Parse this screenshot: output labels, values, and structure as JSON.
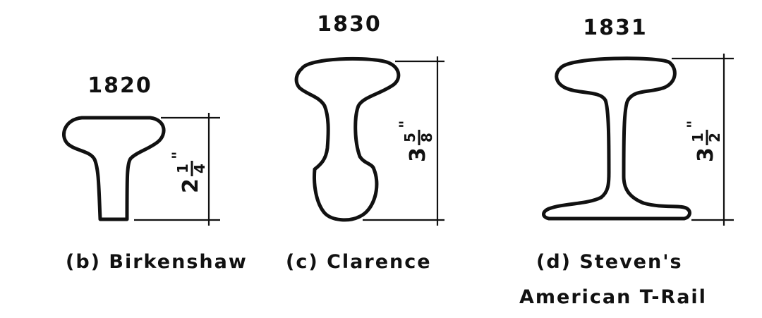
{
  "rails": [
    {
      "year": "1820",
      "label": "(b) Birkenshaw",
      "height_whole": "2",
      "height_num": "1",
      "height_den": "4",
      "height_unit": "\""
    },
    {
      "year": "1830",
      "label": "(c) Clarence",
      "height_whole": "3",
      "height_num": "5",
      "height_den": "8",
      "height_unit": "\""
    },
    {
      "year": "1831",
      "label_line1": "(d) Steven's",
      "label_line2": "American T-Rail",
      "height_whole": "3",
      "height_num": "1",
      "height_den": "2",
      "height_unit": "\""
    }
  ]
}
